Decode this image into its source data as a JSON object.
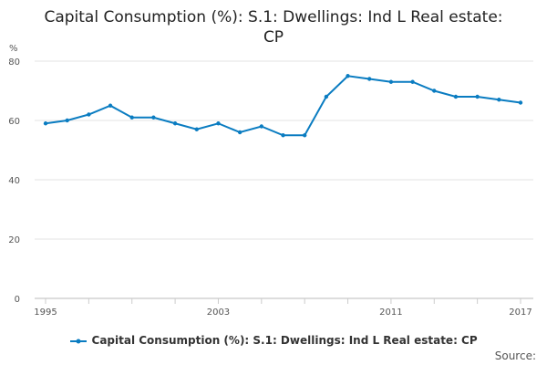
{
  "chart_data": {
    "type": "line",
    "title_line1": "Capital Consumption (%): S.1: Dwellings: Ind L Real estate:",
    "title_line2": "CP",
    "ylabel": "%",
    "xlabel": "",
    "ylim": [
      0,
      80
    ],
    "yticks": [
      0,
      20,
      40,
      60,
      80
    ],
    "xlim": [
      1995,
      2017
    ],
    "xtick_labels": [
      "1995",
      "2003",
      "2011",
      "2017"
    ],
    "grid": true,
    "legend_position": "bottom",
    "series": [
      {
        "name": "Capital Consumption (%): S.1: Dwellings: Ind L Real estate: CP",
        "color": "#0a7cc1",
        "x": [
          1995,
          1996,
          1997,
          1998,
          1999,
          2000,
          2001,
          2002,
          2003,
          2004,
          2005,
          2006,
          2007,
          2008,
          2009,
          2010,
          2011,
          2012,
          2013,
          2014,
          2015,
          2016,
          2017
        ],
        "values": [
          59,
          60,
          62,
          65,
          61,
          61,
          59,
          57,
          59,
          56,
          58,
          55,
          55,
          68,
          75,
          74,
          73,
          73,
          70,
          68,
          68,
          67,
          66
        ]
      }
    ]
  },
  "source_label": "Source:"
}
